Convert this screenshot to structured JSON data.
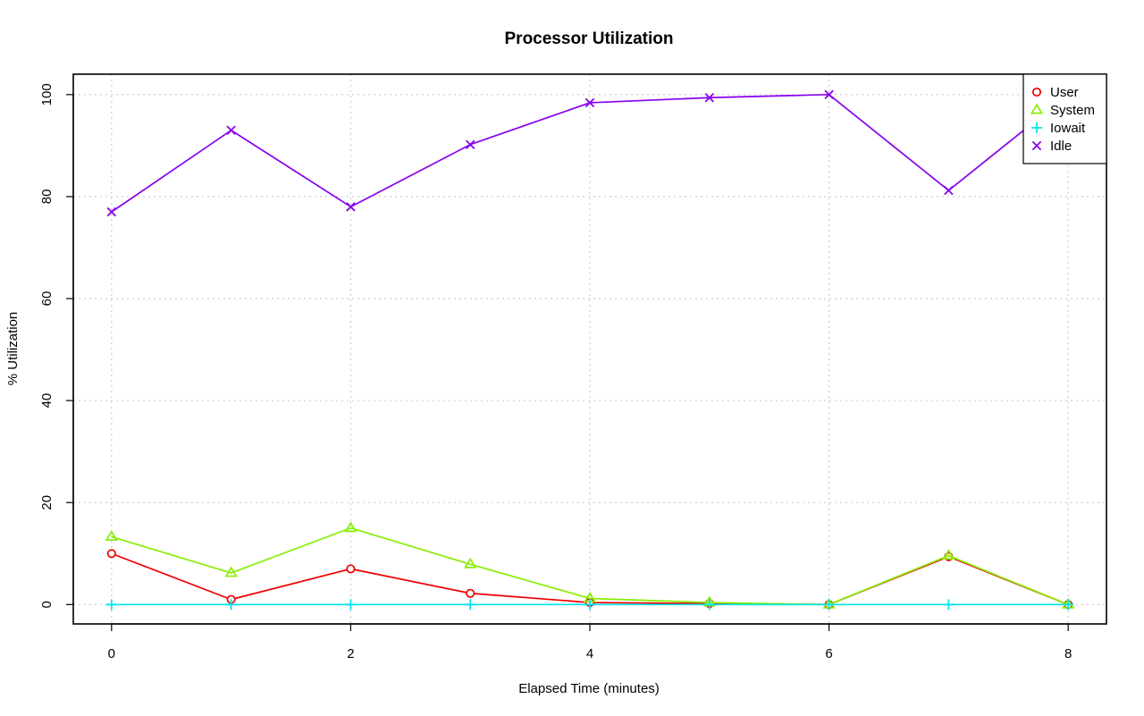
{
  "chart_data": {
    "type": "line",
    "title": "Processor Utilization",
    "xlabel": "Elapsed Time (minutes)",
    "ylabel": "% Utilization",
    "x": [
      0,
      1,
      2,
      3,
      4,
      5,
      6,
      7,
      8
    ],
    "xlim": [
      -0.32,
      8.32
    ],
    "ylim": [
      -3.8,
      104
    ],
    "xticks": [
      0,
      2,
      4,
      6,
      8
    ],
    "yticks": [
      0,
      20,
      40,
      60,
      80,
      100
    ],
    "grid": true,
    "legend_position": "top-right",
    "series": [
      {
        "name": "User",
        "color": "#ee0000",
        "marker": "circle",
        "values": [
          10,
          1,
          7,
          2.2,
          0.4,
          0.2,
          0,
          9.4,
          0
        ]
      },
      {
        "name": "System",
        "color": "#88ee00",
        "marker": "triangle",
        "values": [
          13.3,
          6.2,
          15,
          7.9,
          1.2,
          0.4,
          0,
          9.6,
          0
        ]
      },
      {
        "name": "Iowait",
        "color": "#00e5ee",
        "marker": "plus",
        "values": [
          0,
          0,
          0,
          0,
          0,
          0,
          0,
          0,
          0
        ]
      },
      {
        "name": "Idle",
        "color": "#8800ee",
        "marker": "cross",
        "values": [
          77,
          93,
          78,
          90.2,
          98.4,
          99.4,
          100,
          81.2,
          100
        ]
      }
    ]
  }
}
